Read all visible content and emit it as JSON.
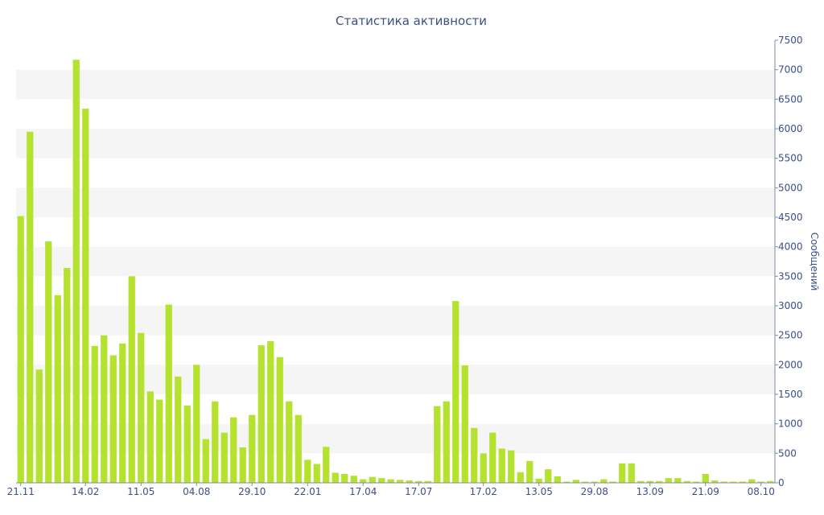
{
  "chart_data": {
    "type": "bar",
    "title": "Статистика активности",
    "ylabel": "Сообщений",
    "ylim": [
      0,
      7500
    ],
    "ytick_step": 500,
    "grid": "alternating horizontal bands",
    "bar_color": "#b5e22e",
    "band_color": "#f5f5f5",
    "text_color": "#3b4f8a",
    "x_tick_labels": [
      {
        "label": "21.11",
        "index": 0
      },
      {
        "label": "14.02",
        "index": 7
      },
      {
        "label": "11.05",
        "index": 13
      },
      {
        "label": "04.08",
        "index": 19
      },
      {
        "label": "29.10",
        "index": 25
      },
      {
        "label": "22.01",
        "index": 31
      },
      {
        "label": "17.04",
        "index": 37
      },
      {
        "label": "17.07",
        "index": 43
      },
      {
        "label": "17.02",
        "index": 50
      },
      {
        "label": "13.05",
        "index": 56
      },
      {
        "label": "29.08",
        "index": 62
      },
      {
        "label": "13.09",
        "index": 68
      },
      {
        "label": "21.09",
        "index": 74
      },
      {
        "label": "08.10",
        "index": 80
      }
    ],
    "values": [
      4520,
      5950,
      1920,
      4090,
      3180,
      3640,
      7170,
      6340,
      2320,
      2500,
      2160,
      2360,
      3500,
      2540,
      1550,
      1410,
      3020,
      1800,
      1310,
      2000,
      740,
      1380,
      850,
      1110,
      600,
      1150,
      2330,
      2400,
      2130,
      1380,
      1150,
      390,
      320,
      610,
      170,
      150,
      120,
      60,
      100,
      80,
      60,
      50,
      40,
      30,
      30,
      1300,
      1380,
      3080,
      1990,
      930,
      500,
      850,
      580,
      550,
      180,
      370,
      70,
      230,
      110,
      20,
      50,
      20,
      20,
      60,
      20,
      330,
      330,
      30,
      30,
      30,
      80,
      80,
      30,
      20,
      150,
      40,
      20,
      20,
      20,
      60,
      20,
      30
    ]
  }
}
